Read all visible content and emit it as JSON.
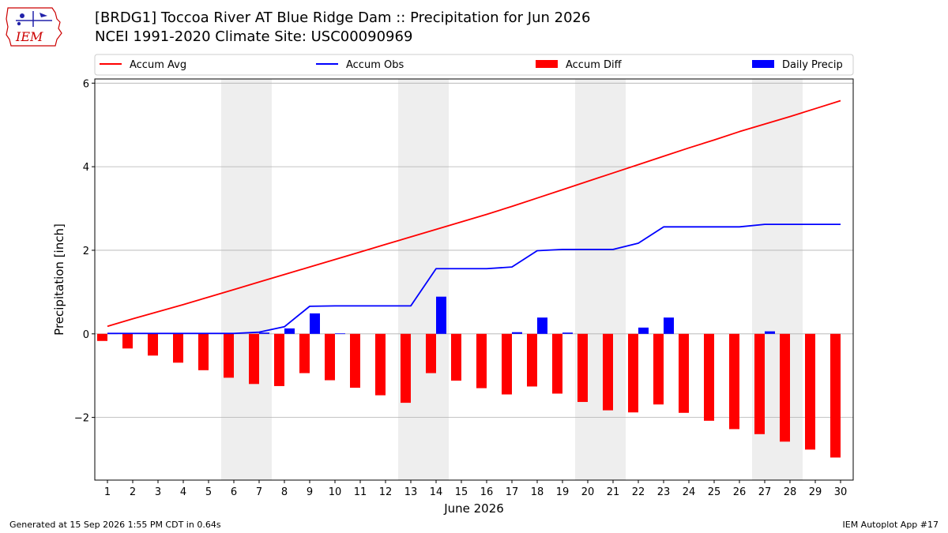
{
  "header": {
    "title_line1": "[BRDG1] Toccoa River  AT Blue Ridge Dam :: Precipitation for Jun 2026",
    "title_line2": "NCEI 1991-2020 Climate Site: USC00090969"
  },
  "logo": {
    "text": "IEM",
    "color": "#cc0000"
  },
  "footer": {
    "left": "Generated at 15 Sep 2026 1:55 PM CDT in 0.64s",
    "right": "IEM Autoplot App #17"
  },
  "chart_data": {
    "type": "bar",
    "xlabel": "June 2026",
    "ylabel": "Precipitation [inch]",
    "ylim": [
      -3.5,
      6.1
    ],
    "yticks": [
      -2,
      0,
      2,
      4,
      6
    ],
    "ytick_labels": [
      "−2",
      "0",
      "2",
      "4",
      "6"
    ],
    "x": [
      1,
      2,
      3,
      4,
      5,
      6,
      7,
      8,
      9,
      10,
      11,
      12,
      13,
      14,
      15,
      16,
      17,
      18,
      19,
      20,
      21,
      22,
      23,
      24,
      25,
      26,
      27,
      28,
      29,
      30
    ],
    "weekend_bands": [
      [
        6,
        7
      ],
      [
        13,
        14
      ],
      [
        20,
        21
      ],
      [
        27,
        28
      ]
    ],
    "grid": "horizontal",
    "legend_position": "top",
    "legend": [
      {
        "label": "Accum Avg",
        "kind": "line",
        "color": "#ff0000"
      },
      {
        "label": "Accum Obs",
        "kind": "line",
        "color": "#0000ff"
      },
      {
        "label": "Accum Diff",
        "kind": "bar",
        "color": "#ff0000"
      },
      {
        "label": "Daily Precip",
        "kind": "bar",
        "color": "#0000ff"
      }
    ],
    "series": [
      {
        "name": "Accum Avg",
        "type": "line",
        "color": "#ff0000",
        "values": [
          0.18,
          0.36,
          0.53,
          0.7,
          0.88,
          1.06,
          1.24,
          1.42,
          1.6,
          1.78,
          1.96,
          2.14,
          2.32,
          2.5,
          2.68,
          2.86,
          3.05,
          3.25,
          3.45,
          3.65,
          3.85,
          4.05,
          4.25,
          4.45,
          4.64,
          4.84,
          5.02,
          5.2,
          5.39,
          5.58
        ]
      },
      {
        "name": "Accum Obs",
        "type": "line",
        "color": "#0000ff",
        "values": [
          0.01,
          0.01,
          0.01,
          0.01,
          0.01,
          0.01,
          0.04,
          0.17,
          0.66,
          0.67,
          0.67,
          0.67,
          0.67,
          1.56,
          1.56,
          1.56,
          1.6,
          1.99,
          2.02,
          2.02,
          2.02,
          2.17,
          2.56,
          2.56,
          2.56,
          2.56,
          2.62,
          2.62,
          2.62,
          2.62
        ]
      },
      {
        "name": "Accum Diff",
        "type": "bar",
        "color": "#ff0000",
        "values": [
          -0.17,
          -0.35,
          -0.52,
          -0.69,
          -0.87,
          -1.05,
          -1.2,
          -1.25,
          -0.94,
          -1.11,
          -1.29,
          -1.47,
          -1.65,
          -0.94,
          -1.12,
          -1.3,
          -1.45,
          -1.26,
          -1.43,
          -1.63,
          -1.83,
          -1.88,
          -1.69,
          -1.89,
          -2.08,
          -2.28,
          -2.4,
          -2.58,
          -2.77,
          -2.96
        ]
      },
      {
        "name": "Daily Precip",
        "type": "bar",
        "color": "#0000ff",
        "values": [
          0.01,
          0,
          0,
          0,
          0,
          0,
          0.03,
          0.13,
          0.49,
          0.01,
          0,
          0,
          0,
          0.89,
          0,
          0,
          0.04,
          0.39,
          0.03,
          0,
          0,
          0.15,
          0.39,
          0,
          0,
          0,
          0.06,
          0,
          0,
          0
        ]
      }
    ]
  }
}
